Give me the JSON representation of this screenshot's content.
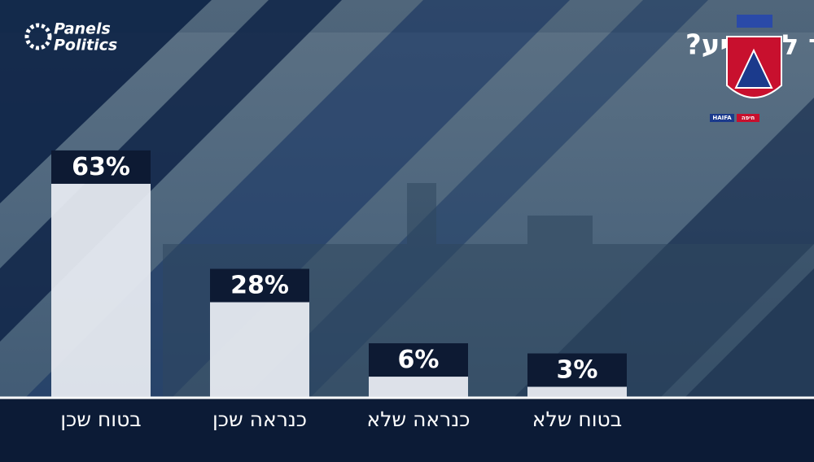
{
  "chart_data": {
    "type": "bar",
    "title": "האם תלך להצביע?",
    "brand": [
      "Panels",
      "Politics"
    ],
    "emblem_text": [
      "HAIFA",
      "חיפה"
    ],
    "categories": [
      "בטוח שכן",
      "כנראה שכן",
      "כנראה שלא",
      "בטוח שלא"
    ],
    "values": [
      63,
      28,
      6,
      3
    ],
    "value_labels": [
      "63%",
      "28%",
      "6%",
      "3%"
    ],
    "color": "#e9edf3",
    "label_box_color": "#0d1a33"
  }
}
